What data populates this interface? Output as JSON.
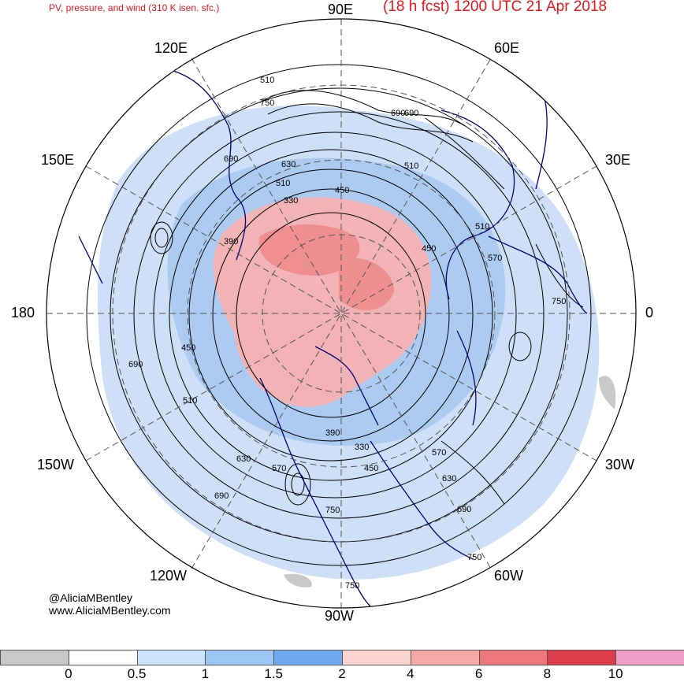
{
  "title": {
    "left": "PV, pressure, and wind (310 K isen. sfc.)",
    "right": "(18 h fcst) 1200 UTC 21 Apr 2018"
  },
  "longitude_labels": {
    "e90": "90E",
    "e60": "60E",
    "e120": "120E",
    "e30": "30E",
    "e150": "150E",
    "deg180": "180",
    "deg0": "0",
    "w150": "150W",
    "w30": "30W",
    "w120": "120W",
    "w60": "60W",
    "w90": "90W"
  },
  "pressure_labels": [
    "510",
    "750",
    "690",
    "630",
    "510",
    "450",
    "330",
    "690",
    "390",
    "450",
    "510",
    "690",
    "450",
    "570",
    "510",
    "690",
    "570",
    "750",
    "630",
    "690",
    "570",
    "630",
    "690",
    "330",
    "390",
    "450",
    "510",
    "750",
    "750",
    "750"
  ],
  "credits": {
    "handle": "@AliciaMBentley",
    "site": "www.AliciaMBentley.com"
  },
  "colorbar": {
    "labels": [
      "0",
      "0.5",
      "1",
      "1.5",
      "2",
      "4",
      "6",
      "8",
      "10"
    ],
    "colors": [
      "#c8c8c8",
      "#ffffff",
      "#cde3fb",
      "#9cc7f5",
      "#6ea9ef",
      "#fbd4d0",
      "#f6a8a6",
      "#ef767a",
      "#dd3c4a",
      "#f19ec9"
    ]
  },
  "colors": {
    "title": "#e8141b",
    "coast": "#00007a",
    "contour": "#000000",
    "pv_low": "#c8ddf6",
    "pv_mid": "#a4c6ef",
    "pv_high": "#f5b2b2",
    "pv_peak": "#ef8a8d"
  }
}
